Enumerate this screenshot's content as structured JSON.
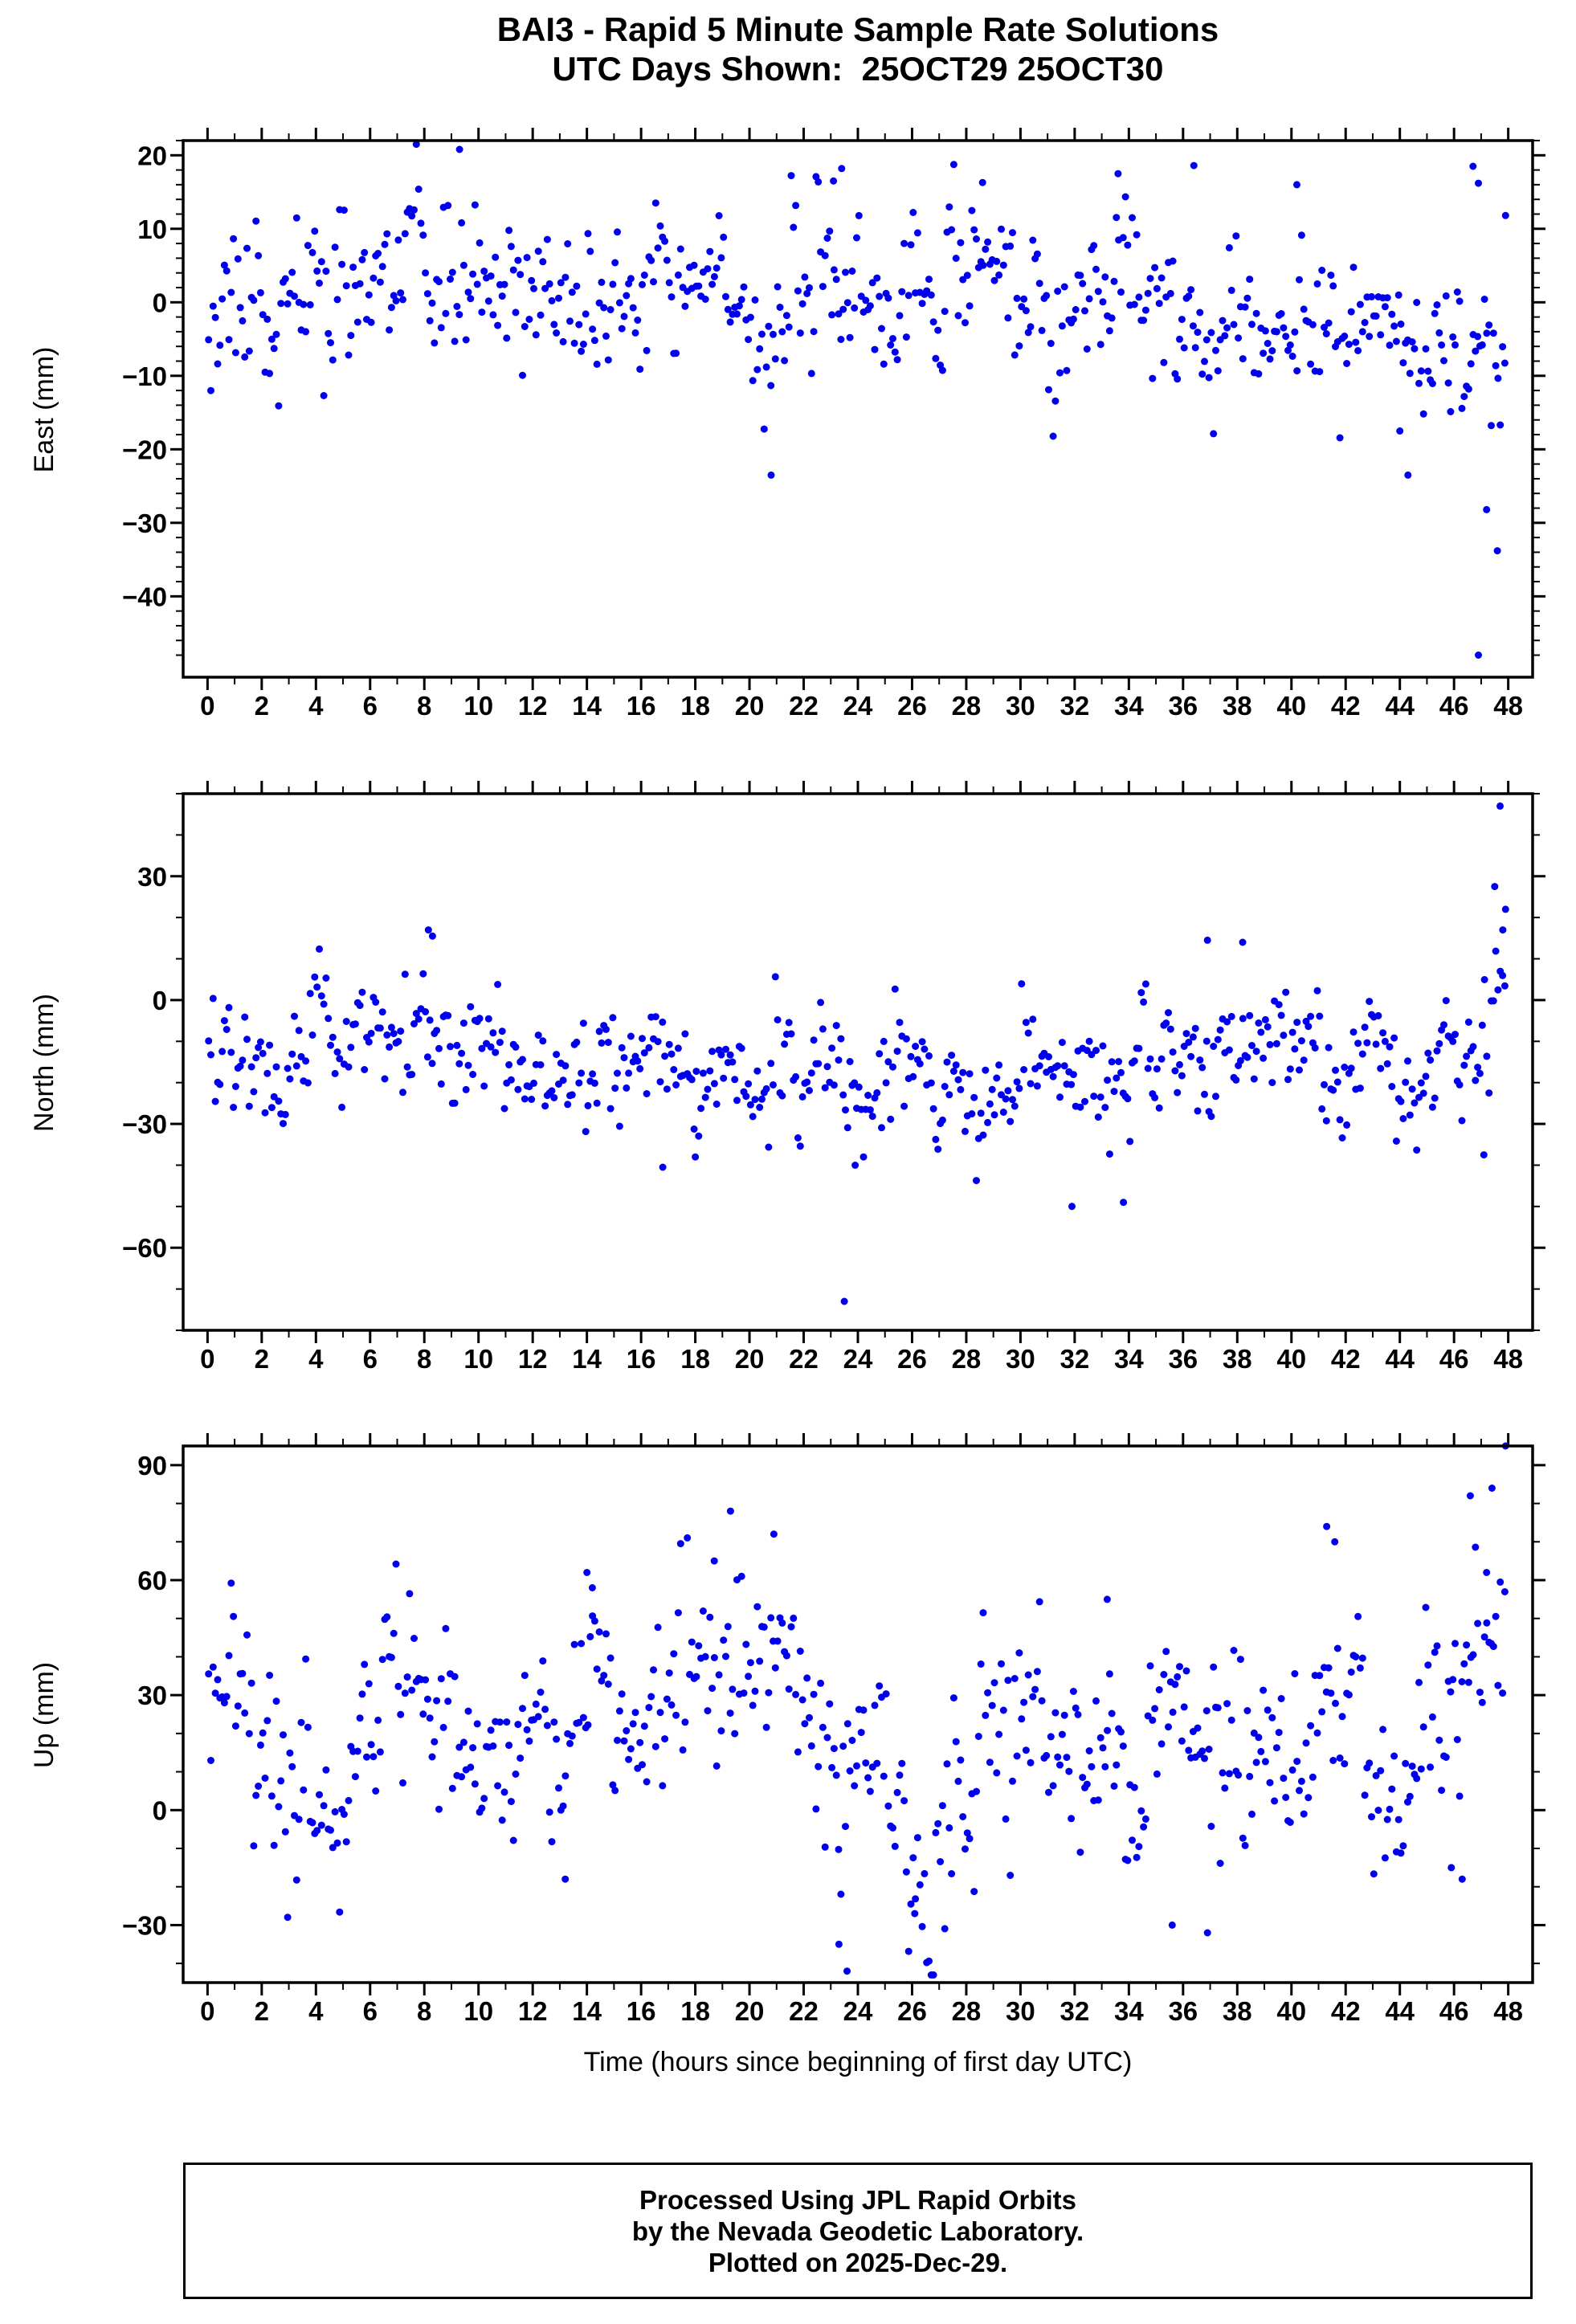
{
  "title": {
    "line1": "BAI3 - Rapid 5 Minute Sample Rate Solutions",
    "line2": "UTC Days Shown:  25OCT29 25OCT30"
  },
  "xlabel": "Time (hours since beginning of first day UTC)",
  "footer": {
    "line1": "Processed Using JPL Rapid Orbits",
    "line2": "by the Nevada Geodetic Laboratory.",
    "line3": "Plotted on 2025-Dec-29."
  },
  "style": {
    "point_color": "#0000ee",
    "axis_color": "#000000",
    "background": "#ffffff"
  },
  "chart_data": [
    {
      "type": "scatter",
      "name": "east",
      "ylabel": "East (mm)",
      "xlim": [
        -0.9,
        48.9
      ],
      "ylim": [
        -51,
        22
      ],
      "xticks": [
        0,
        2,
        4,
        6,
        8,
        10,
        12,
        14,
        16,
        18,
        20,
        22,
        24,
        26,
        28,
        30,
        32,
        34,
        36,
        38,
        40,
        42,
        44,
        46,
        48
      ],
      "xtick_minor_step": 1,
      "yticks": [
        20,
        10,
        0,
        -10,
        -20,
        -30,
        -40
      ],
      "ytick_labels": [
        "20",
        "10",
        "0",
        "−10",
        "−20",
        "−30",
        "−40"
      ],
      "ytick_minor_step": 2,
      "sample_rate": "5 minute",
      "generator": {
        "seed": 11,
        "n": 575,
        "x_start": 0.04,
        "x_step": 0.0833333,
        "noise_std": 4.5,
        "ar_coef": 0.85,
        "ar_std_frac": 0.45,
        "trend": [
          [
            0,
            1
          ],
          [
            10,
            0.5
          ],
          [
            20,
            -1
          ],
          [
            23.5,
            2
          ],
          [
            27,
            0
          ],
          [
            34,
            1
          ],
          [
            40,
            -1
          ],
          [
            43,
            -4
          ],
          [
            45.5,
            -5
          ],
          [
            48,
            -6
          ]
        ],
        "clamp": [
          -50.5,
          21.5
        ]
      },
      "outliers": [
        [
          9.3,
          20.8
        ],
        [
          20.8,
          -23.5
        ],
        [
          23.4,
          18.2
        ],
        [
          23.1,
          16.5
        ],
        [
          28.6,
          16.3
        ],
        [
          33.6,
          17.5
        ],
        [
          36.4,
          18.6
        ],
        [
          40.2,
          16.0
        ],
        [
          46.7,
          18.5
        ],
        [
          46.9,
          16.2
        ],
        [
          47.9,
          11.8
        ],
        [
          47.2,
          -28.2
        ],
        [
          47.6,
          -33.8
        ],
        [
          46.9,
          -48.0
        ],
        [
          44.3,
          -23.5
        ],
        [
          44.0,
          -17.5
        ]
      ]
    },
    {
      "type": "scatter",
      "name": "north",
      "ylabel": "North (mm)",
      "xlim": [
        -0.9,
        48.9
      ],
      "ylim": [
        -80,
        50
      ],
      "xticks": [
        0,
        2,
        4,
        6,
        8,
        10,
        12,
        14,
        16,
        18,
        20,
        22,
        24,
        26,
        28,
        30,
        32,
        34,
        36,
        38,
        40,
        42,
        44,
        46,
        48
      ],
      "xtick_minor_step": 1,
      "yticks": [
        30,
        0,
        -30,
        -60
      ],
      "ytick_labels": [
        "30",
        "0",
        "−30",
        "−60"
      ],
      "ytick_minor_step": 10,
      "sample_rate": "5 minute",
      "generator": {
        "seed": 22,
        "n": 575,
        "x_start": 0.04,
        "x_step": 0.0833333,
        "noise_std": 6,
        "ar_coef": 0.88,
        "ar_std_frac": 0.45,
        "trend": [
          [
            0,
            -13
          ],
          [
            4,
            -12
          ],
          [
            8,
            -16
          ],
          [
            12,
            -14
          ],
          [
            16,
            -18
          ],
          [
            20,
            -16
          ],
          [
            24,
            -19
          ],
          [
            28,
            -17
          ],
          [
            32,
            -20
          ],
          [
            36,
            -17
          ],
          [
            40,
            -15
          ],
          [
            44,
            -17
          ],
          [
            46.5,
            -12
          ],
          [
            47.5,
            -2
          ],
          [
            48,
            8
          ]
        ],
        "clamp": [
          -79,
          49
        ]
      },
      "outliers": [
        [
          23.5,
          -73
        ],
        [
          8.15,
          17
        ],
        [
          8.3,
          15.5
        ],
        [
          31.9,
          -50
        ],
        [
          33.8,
          -49
        ],
        [
          47.7,
          47
        ],
        [
          47.5,
          27.5
        ],
        [
          47.9,
          22
        ],
        [
          47.8,
          17
        ],
        [
          16.8,
          -40.5
        ],
        [
          18.0,
          -38
        ],
        [
          23.9,
          -40
        ],
        [
          36.9,
          14.5
        ],
        [
          38.2,
          14
        ],
        [
          47.1,
          -37.5
        ]
      ]
    },
    {
      "type": "scatter",
      "name": "up",
      "ylabel": "Up (mm)",
      "xlim": [
        -0.9,
        48.9
      ],
      "ylim": [
        -45,
        95
      ],
      "xticks": [
        0,
        2,
        4,
        6,
        8,
        10,
        12,
        14,
        16,
        18,
        20,
        22,
        24,
        26,
        28,
        30,
        32,
        34,
        36,
        38,
        40,
        42,
        44,
        46,
        48
      ],
      "xtick_minor_step": 1,
      "yticks": [
        90,
        60,
        30,
        0,
        -30
      ],
      "ytick_labels": [
        "90",
        "60",
        "30",
        "0",
        "−30"
      ],
      "ytick_minor_step": 10,
      "sample_rate": "5 minute",
      "generator": {
        "seed": 33,
        "n": 575,
        "x_start": 0.04,
        "x_step": 0.0833333,
        "noise_std": 11,
        "ar_coef": 0.88,
        "ar_std_frac": 0.45,
        "trend": [
          [
            0,
            25
          ],
          [
            1,
            30
          ],
          [
            3,
            5
          ],
          [
            5,
            8
          ],
          [
            7,
            25
          ],
          [
            8,
            28
          ],
          [
            10,
            15
          ],
          [
            12,
            18
          ],
          [
            14,
            28
          ],
          [
            15,
            22
          ],
          [
            16,
            18
          ],
          [
            17,
            25
          ],
          [
            18,
            30
          ],
          [
            19.5,
            38
          ],
          [
            21,
            33
          ],
          [
            22.5,
            20
          ],
          [
            23.5,
            5
          ],
          [
            25,
            8
          ],
          [
            26,
            2
          ],
          [
            28,
            6
          ],
          [
            30,
            14
          ],
          [
            31,
            18
          ],
          [
            32,
            12
          ],
          [
            33,
            10
          ],
          [
            34,
            6
          ],
          [
            35,
            10
          ],
          [
            36,
            12
          ],
          [
            37,
            8
          ],
          [
            38,
            14
          ],
          [
            39,
            10
          ],
          [
            40,
            8
          ],
          [
            41,
            25
          ],
          [
            42,
            30
          ],
          [
            43,
            22
          ],
          [
            44,
            24
          ],
          [
            45,
            28
          ],
          [
            46,
            34
          ],
          [
            47,
            42
          ],
          [
            48,
            52
          ]
        ],
        "clamp": [
          -43,
          94
        ]
      },
      "outliers": [
        [
          19.3,
          78
        ],
        [
          20.9,
          72
        ],
        [
          23.6,
          -42
        ],
        [
          41.3,
          74
        ],
        [
          41.6,
          70
        ],
        [
          46.6,
          82
        ],
        [
          47.4,
          84
        ],
        [
          47.9,
          95
        ],
        [
          14.0,
          62
        ],
        [
          14.2,
          58
        ],
        [
          18.7,
          65
        ],
        [
          33.2,
          55
        ],
        [
          47.2,
          62
        ],
        [
          46.3,
          -18
        ],
        [
          45.9,
          -15
        ],
        [
          13.2,
          -18
        ],
        [
          23.3,
          -35
        ],
        [
          26.1,
          -27
        ],
        [
          35.6,
          -30
        ],
        [
          36.9,
          -32
        ]
      ]
    }
  ]
}
